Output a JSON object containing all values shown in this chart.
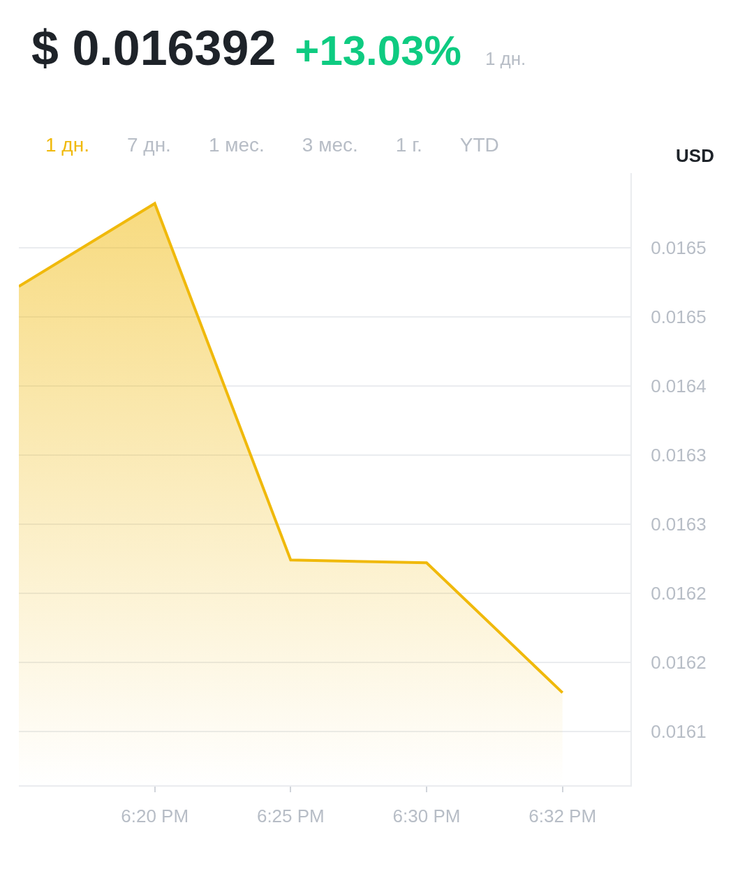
{
  "chart_data": {
    "type": "area",
    "title": "$ 0.016392",
    "subtitle": "+13.03%",
    "ylabel": "USD",
    "annotations": [
      "1 дн.",
      "1 дн.",
      "7 дн.",
      "1 мес.",
      "3 мес.",
      "1 г.",
      "YTD"
    ],
    "categories": [
      null,
      "6:20 PM",
      "6:25 PM",
      "6:30 PM",
      "6:32 PM"
    ],
    "values": [
      0.016472,
      0.016532,
      0.016274,
      0.016272,
      0.016178
    ],
    "color": "#f0b90b",
    "ylim": [
      0.016111,
      0.016554
    ],
    "yticks": [
      0.0165,
      {
        "value": 0.01645,
        "label": "0.0165"
      },
      0.0164,
      {
        "value": 0.01635,
        "label": "0.0163"
      },
      0.0163,
      {
        "value": 0.01625,
        "label": "0.0162"
      },
      0.0162,
      {
        "value": 0.01615,
        "label": "0.0161"
      }
    ],
    "grid": "y"
  }
}
